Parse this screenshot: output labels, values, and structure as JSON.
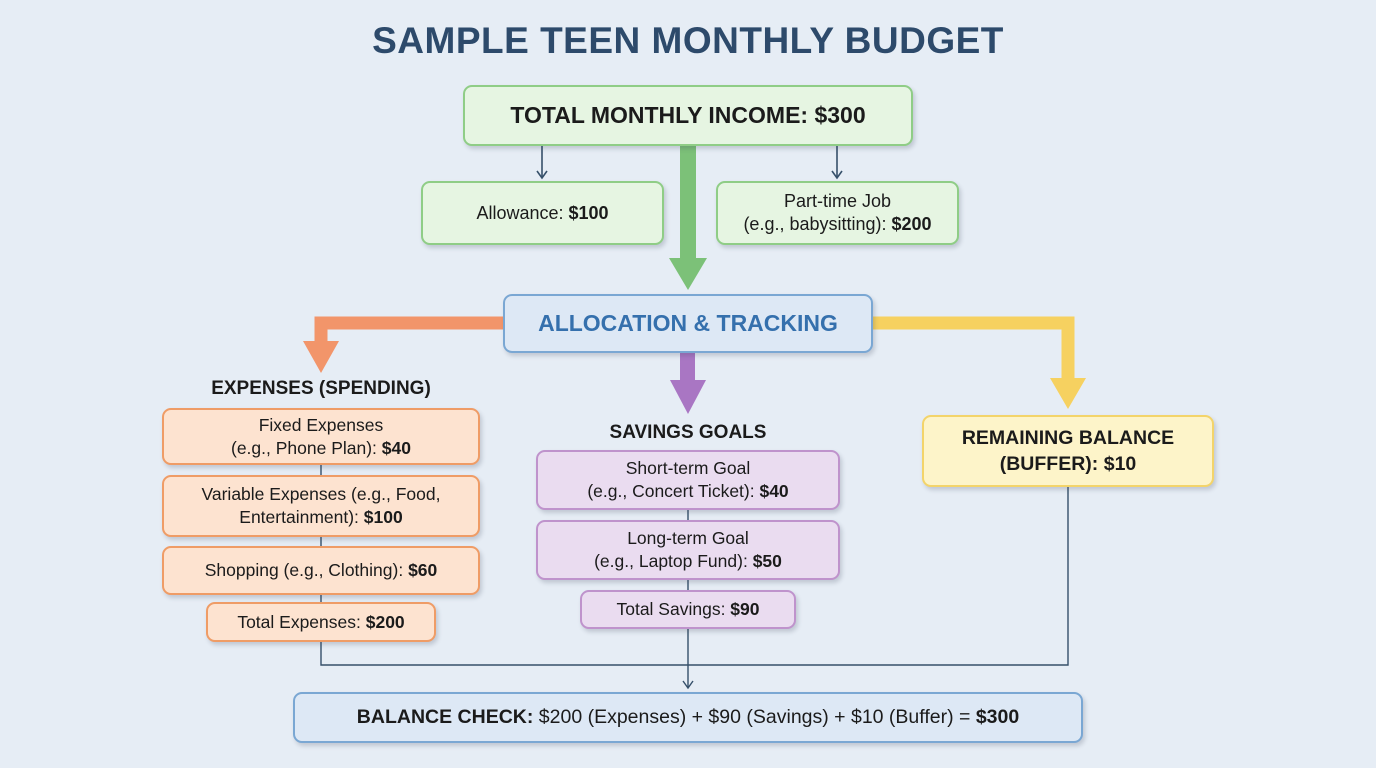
{
  "title": "SAMPLE TEEN MONTHLY BUDGET",
  "income": {
    "total_label": "TOTAL MONTHLY INCOME: $300",
    "allowance": {
      "label": "Allowance: ",
      "amount": "$100"
    },
    "job": {
      "line1": "Part-time Job",
      "line2_label": "(e.g., babysitting): ",
      "amount": "$200"
    }
  },
  "allocation": {
    "label": "ALLOCATION & TRACKING"
  },
  "expenses": {
    "heading": "EXPENSES (SPENDING)",
    "fixed": {
      "line1": "Fixed Expenses",
      "line2_label": "(e.g., Phone Plan): ",
      "amount": "$40"
    },
    "variable": {
      "line1": "Variable Expenses (e.g., Food,",
      "line2_label": "Entertainment): ",
      "amount": "$100"
    },
    "shopping": {
      "label": "Shopping (e.g., Clothing): ",
      "amount": "$60"
    },
    "total": {
      "label": "Total Expenses: ",
      "amount": "$200"
    }
  },
  "savings": {
    "heading": "SAVINGS GOALS",
    "short_term": {
      "line1": "Short-term Goal",
      "line2_label": "(e.g., Concert Ticket): ",
      "amount": "$40"
    },
    "long_term": {
      "line1": "Long-term Goal",
      "line2_label": "(e.g., Laptop Fund): ",
      "amount": "$50"
    },
    "total": {
      "label": "Total Savings: ",
      "amount": "$90"
    }
  },
  "remaining": {
    "line1": "REMAINING BALANCE",
    "line2_label": "(BUFFER): ",
    "amount": "$10"
  },
  "balance_check": {
    "label": "BALANCE CHECK:",
    "equation": " $200 (Expenses) + $90 (Savings) + $10 (Buffer) = ",
    "result": "$300"
  },
  "colors": {
    "green_arrow": "#7cc178",
    "orange_arrow": "#f2956a",
    "purple_arrow": "#a976c3",
    "yellow_arrow": "#f6d160",
    "connector": "#36506a",
    "title": "#2d4a6b"
  }
}
